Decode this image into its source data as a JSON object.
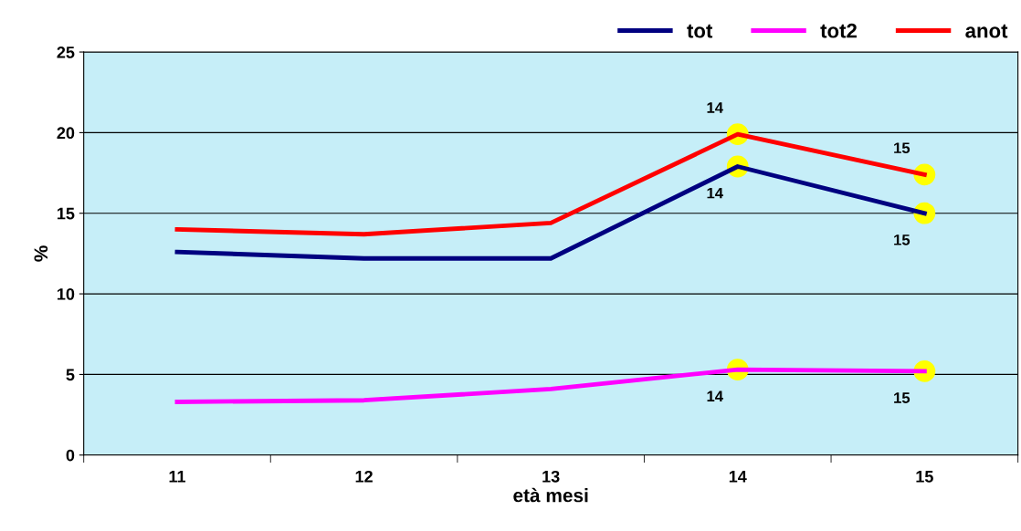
{
  "chart_data": {
    "type": "line",
    "xlabel": "età mesi",
    "ylabel": "%",
    "categories": [
      "11",
      "12",
      "13",
      "14",
      "15"
    ],
    "series": [
      {
        "name": "tot",
        "color": "#000080",
        "values": [
          12.6,
          12.2,
          12.2,
          17.9,
          15.0
        ]
      },
      {
        "name": "tot2",
        "color": "#ff00ff",
        "values": [
          3.3,
          3.4,
          4.1,
          5.3,
          5.2
        ]
      },
      {
        "name": "anot",
        "color": "#ff0000",
        "values": [
          14.0,
          13.7,
          14.4,
          19.9,
          17.4
        ]
      },
      {
        "type": "scatter",
        "marker": "circle",
        "color": "#ffff00",
        "x": [
          "14",
          "15",
          "14",
          "15",
          "14",
          "15"
        ],
        "values": [
          17.9,
          15.0,
          5.3,
          5.2,
          19.9,
          17.4
        ]
      }
    ],
    "annotations": [
      {
        "text": "14",
        "x": "14",
        "y": 17.9
      },
      {
        "text": "15",
        "x": "15",
        "y": 15.0
      },
      {
        "text": "14",
        "x": "14",
        "y": 5.3
      },
      {
        "text": "15",
        "x": "15",
        "y": 5.2
      },
      {
        "text": "14",
        "x": "14",
        "y": 19.9
      },
      {
        "text": "15",
        "x": "15",
        "y": 17.4
      }
    ],
    "ylim": [
      0,
      25
    ],
    "yticks": [
      0,
      5,
      10,
      15,
      20,
      25
    ],
    "grid": "y",
    "legend": "top right",
    "marker": "none",
    "line_style": "solid"
  }
}
